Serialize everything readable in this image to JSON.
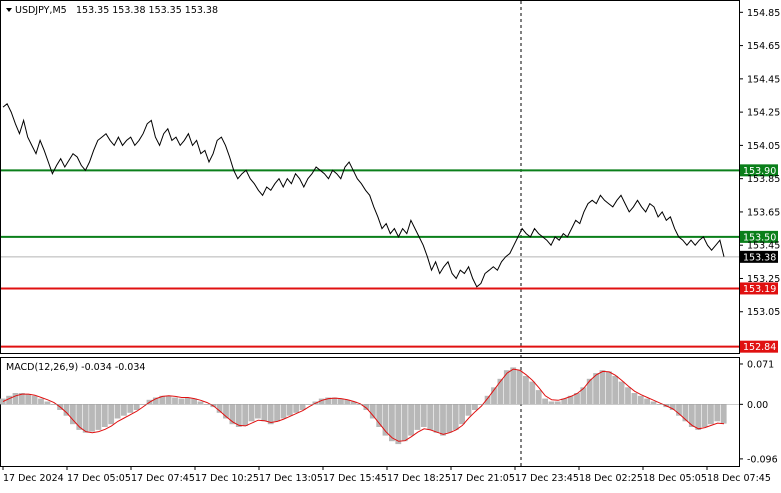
{
  "header": {
    "menu_icon": "triangle-down-icon",
    "symbol": "USDJPY,M5",
    "ohlc": "153.35 153.38 153.35 153.38"
  },
  "macd_header": "MACD(12,26,9) -0.034 -0.034",
  "price_axis": {
    "labels": [
      "154.85",
      "154.65",
      "154.45",
      "154.25",
      "154.05",
      "153.85",
      "153.65",
      "153.45",
      "153.25",
      "153.05"
    ],
    "min": 152.82,
    "max": 154.9,
    "current_price": "153.38"
  },
  "levels": [
    {
      "price": 153.9,
      "label": "153.90",
      "color": "#0a7f1a"
    },
    {
      "price": 153.5,
      "label": "153.50",
      "color": "#0a7f1a"
    },
    {
      "price": 153.19,
      "label": "153.19",
      "color": "#e01010"
    },
    {
      "price": 152.84,
      "label": "152.84",
      "color": "#e01010"
    }
  ],
  "macd_axis": {
    "labels": [
      "0.071",
      "0.00",
      "-0.096"
    ],
    "min": -0.105,
    "max": 0.078
  },
  "time_axis": [
    "17 Dec 2024",
    "17 Dec 05:05",
    "17 Dec 07:45",
    "17 Dec 10:25",
    "17 Dec 13:05",
    "17 Dec 15:45",
    "17 Dec 18:25",
    "17 Dec 21:05",
    "17 Dec 23:45",
    "18 Dec 02:25",
    "18 Dec 05:05",
    "18 Dec 07:45"
  ],
  "chart_data": {
    "type": "line",
    "title": "USDJPY,M5",
    "series": [
      {
        "name": "USDJPY,M5",
        "values": [
          154.28,
          154.3,
          154.25,
          154.18,
          154.12,
          154.2,
          154.1,
          154.05,
          154.0,
          154.08,
          154.02,
          153.95,
          153.88,
          153.93,
          153.97,
          153.92,
          153.96,
          154.0,
          153.98,
          153.93,
          153.9,
          153.95,
          154.02,
          154.08,
          154.1,
          154.12,
          154.08,
          154.05,
          154.1,
          154.05,
          154.08,
          154.1,
          154.05,
          154.08,
          154.12,
          154.18,
          154.2,
          154.1,
          154.05,
          154.12,
          154.15,
          154.08,
          154.1,
          154.05,
          154.08,
          154.12,
          154.05,
          154.08,
          154.0,
          154.02,
          153.95,
          154.0,
          154.08,
          154.1,
          154.05,
          153.98,
          153.9,
          153.85,
          153.88,
          153.9,
          153.85,
          153.82,
          153.78,
          153.75,
          153.8,
          153.78,
          153.82,
          153.85,
          153.8,
          153.85,
          153.82,
          153.88,
          153.85,
          153.8,
          153.85,
          153.88,
          153.92,
          153.9,
          153.88,
          153.85,
          153.9,
          153.88,
          153.85,
          153.92,
          153.95,
          153.9,
          153.85,
          153.82,
          153.78,
          153.75,
          153.68,
          153.62,
          153.55,
          153.58,
          153.52,
          153.55,
          153.5,
          153.55,
          153.52,
          153.6,
          153.55,
          153.5,
          153.45,
          153.38,
          153.3,
          153.35,
          153.28,
          153.32,
          153.35,
          153.28,
          153.25,
          153.3,
          153.28,
          153.32,
          153.25,
          153.2,
          153.22,
          153.28,
          153.3,
          153.32,
          153.3,
          153.35,
          153.38,
          153.4,
          153.45,
          153.5,
          153.55,
          153.52,
          153.5,
          153.55,
          153.52,
          153.5,
          153.48,
          153.45,
          153.5,
          153.48,
          153.52,
          153.5,
          153.55,
          153.6,
          153.58,
          153.65,
          153.7,
          153.72,
          153.7,
          153.75,
          153.72,
          153.7,
          153.68,
          153.72,
          153.75,
          153.7,
          153.65,
          153.68,
          153.72,
          153.68,
          153.65,
          153.7,
          153.68,
          153.62,
          153.65,
          153.6,
          153.62,
          153.55,
          153.5,
          153.48,
          153.45,
          153.48,
          153.45,
          153.48,
          153.5,
          153.45,
          153.42,
          153.45,
          153.48,
          153.38
        ]
      },
      {
        "name": "MACD(12,26,9)",
        "values": [
          0.01,
          0.015,
          0.02,
          0.02,
          0.018,
          0.015,
          0.01,
          0.005,
          0.0,
          -0.01,
          -0.02,
          -0.035,
          -0.045,
          -0.05,
          -0.048,
          -0.045,
          -0.04,
          -0.035,
          -0.025,
          -0.02,
          -0.015,
          -0.01,
          0.0,
          0.008,
          0.012,
          0.015,
          0.015,
          0.012,
          0.01,
          0.012,
          0.01,
          0.005,
          0.0,
          -0.005,
          -0.015,
          -0.025,
          -0.035,
          -0.04,
          -0.038,
          -0.03,
          -0.025,
          -0.03,
          -0.035,
          -0.03,
          -0.025,
          -0.02,
          -0.015,
          -0.01,
          0.0,
          0.005,
          0.01,
          0.012,
          0.012,
          0.01,
          0.008,
          0.005,
          0.0,
          -0.01,
          -0.025,
          -0.04,
          -0.055,
          -0.065,
          -0.07,
          -0.065,
          -0.055,
          -0.045,
          -0.04,
          -0.045,
          -0.05,
          -0.055,
          -0.05,
          -0.045,
          -0.035,
          -0.02,
          -0.01,
          0.0,
          0.015,
          0.03,
          0.045,
          0.06,
          0.065,
          0.06,
          0.05,
          0.04,
          0.025,
          0.01,
          0.005,
          0.005,
          0.01,
          0.015,
          0.02,
          0.03,
          0.045,
          0.055,
          0.06,
          0.058,
          0.05,
          0.04,
          0.03,
          0.02,
          0.015,
          0.01,
          0.005,
          0.0,
          -0.005,
          -0.01,
          -0.02,
          -0.03,
          -0.04,
          -0.045,
          -0.04,
          -0.035,
          -0.03,
          -0.034
        ]
      },
      {
        "name": "Signal",
        "values": [
          0.005,
          0.01,
          0.015,
          0.018,
          0.018,
          0.016,
          0.012,
          0.008,
          0.003,
          -0.005,
          -0.015,
          -0.028,
          -0.04,
          -0.048,
          -0.05,
          -0.048,
          -0.044,
          -0.038,
          -0.03,
          -0.024,
          -0.018,
          -0.012,
          -0.004,
          0.004,
          0.01,
          0.014,
          0.015,
          0.014,
          0.012,
          0.012,
          0.01,
          0.007,
          0.003,
          -0.003,
          -0.012,
          -0.022,
          -0.031,
          -0.037,
          -0.038,
          -0.033,
          -0.028,
          -0.029,
          -0.032,
          -0.03,
          -0.026,
          -0.021,
          -0.016,
          -0.011,
          -0.004,
          0.002,
          0.007,
          0.01,
          0.011,
          0.01,
          0.008,
          0.005,
          0.001,
          -0.007,
          -0.02,
          -0.034,
          -0.048,
          -0.059,
          -0.065,
          -0.064,
          -0.057,
          -0.049,
          -0.043,
          -0.045,
          -0.049,
          -0.053,
          -0.05,
          -0.045,
          -0.037,
          -0.024,
          -0.013,
          -0.003,
          0.011,
          0.026,
          0.041,
          0.055,
          0.062,
          0.06,
          0.052,
          0.042,
          0.029,
          0.015,
          0.008,
          0.007,
          0.01,
          0.014,
          0.019,
          0.028,
          0.042,
          0.052,
          0.058,
          0.057,
          0.051,
          0.042,
          0.032,
          0.023,
          0.017,
          0.012,
          0.007,
          0.002,
          -0.003,
          -0.008,
          -0.017,
          -0.027,
          -0.037,
          -0.043,
          -0.041,
          -0.037,
          -0.033,
          -0.034
        ]
      }
    ]
  }
}
